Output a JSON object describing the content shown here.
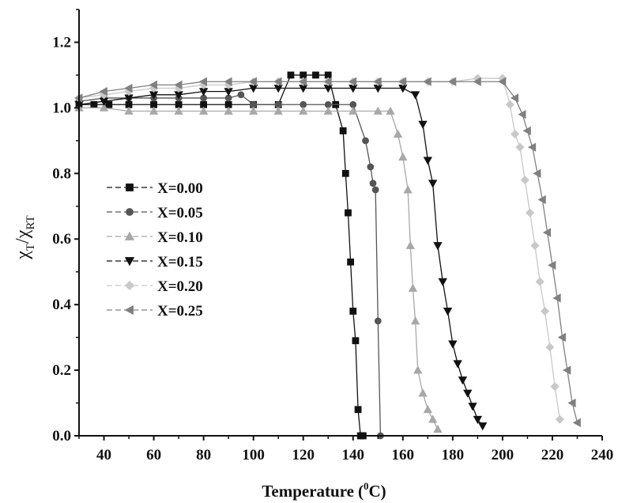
{
  "chart_data": {
    "type": "scatter",
    "title": "",
    "xlabel": "Temperature",
    "xlabel_unit_base": "(",
    "xlabel_unit_sup": "0",
    "xlabel_unit_end": "C)",
    "ylabel_main": "χ",
    "ylabel_sub1": "T",
    "ylabel_slash": "/",
    "ylabel_main2": "χ",
    "ylabel_sub2": "RT",
    "xlim": [
      30,
      240
    ],
    "ylim": [
      0.0,
      1.3
    ],
    "xticks": [
      "40",
      "60",
      "80",
      "100",
      "120",
      "140",
      "160",
      "180",
      "200",
      "220",
      "240"
    ],
    "yticks": [
      "0.0",
      "0.2",
      "0.4",
      "0.6",
      "0.8",
      "1.0",
      "1.2"
    ],
    "grid": false,
    "legend_position": "center-left",
    "series": [
      {
        "name": "X=0.00",
        "marker": "square",
        "color": "#111111",
        "x": [
          30,
          36,
          42,
          50,
          60,
          70,
          80,
          90,
          100,
          110,
          115,
          120,
          125,
          130,
          133,
          136,
          137,
          138,
          139,
          140,
          141,
          142,
          143,
          144
        ],
        "y": [
          1.01,
          1.01,
          1.01,
          1.01,
          1.01,
          1.01,
          1.01,
          1.01,
          1.01,
          1.01,
          1.1,
          1.1,
          1.1,
          1.1,
          1.01,
          0.93,
          0.8,
          0.68,
          0.53,
          0.38,
          0.29,
          0.08,
          0.0,
          0.0
        ]
      },
      {
        "name": "X=0.05",
        "marker": "circle",
        "color": "#555555",
        "x": [
          30,
          40,
          50,
          60,
          70,
          80,
          90,
          95,
          100,
          110,
          120,
          130,
          140,
          145,
          147,
          148,
          149,
          150,
          151
        ],
        "y": [
          1.02,
          1.03,
          1.03,
          1.03,
          1.03,
          1.03,
          1.03,
          1.04,
          1.01,
          1.01,
          1.01,
          1.01,
          1.01,
          0.9,
          0.82,
          0.77,
          0.75,
          0.35,
          0.0
        ]
      },
      {
        "name": "X=0.10",
        "marker": "triangle-up",
        "color": "#a8a8a8",
        "x": [
          30,
          40,
          50,
          60,
          70,
          80,
          90,
          100,
          110,
          120,
          130,
          140,
          150,
          155,
          158,
          160,
          162,
          163,
          164,
          165,
          166,
          168,
          170,
          172,
          174
        ],
        "y": [
          1.0,
          1.0,
          0.99,
          0.99,
          0.99,
          0.99,
          0.99,
          0.99,
          0.99,
          0.99,
          0.99,
          0.99,
          0.99,
          0.99,
          0.92,
          0.85,
          0.75,
          0.58,
          0.45,
          0.35,
          0.2,
          0.13,
          0.08,
          0.05,
          0.02
        ]
      },
      {
        "name": "X=0.15",
        "marker": "triangle-down",
        "color": "#111111",
        "x": [
          30,
          40,
          50,
          60,
          70,
          80,
          90,
          100,
          110,
          120,
          130,
          140,
          150,
          160,
          165,
          168,
          170,
          172,
          174,
          176,
          178,
          180,
          182,
          184,
          186,
          188,
          190,
          192
        ],
        "y": [
          1.01,
          1.02,
          1.03,
          1.04,
          1.04,
          1.05,
          1.05,
          1.06,
          1.06,
          1.06,
          1.06,
          1.06,
          1.06,
          1.06,
          1.04,
          0.95,
          0.84,
          0.77,
          0.58,
          0.47,
          0.38,
          0.28,
          0.22,
          0.17,
          0.13,
          0.09,
          0.05,
          0.03
        ]
      },
      {
        "name": "X=0.20",
        "marker": "diamond",
        "color": "#c8c8c8",
        "x": [
          30,
          40,
          50,
          60,
          70,
          80,
          90,
          100,
          110,
          120,
          130,
          140,
          150,
          160,
          170,
          180,
          190,
          200,
          203,
          205,
          207,
          209,
          211,
          213,
          215,
          217,
          219,
          221,
          223
        ],
        "y": [
          1.03,
          1.04,
          1.05,
          1.06,
          1.06,
          1.07,
          1.07,
          1.08,
          1.08,
          1.08,
          1.08,
          1.08,
          1.08,
          1.08,
          1.08,
          1.08,
          1.09,
          1.09,
          1.01,
          0.92,
          0.88,
          0.78,
          0.68,
          0.58,
          0.47,
          0.38,
          0.27,
          0.15,
          0.05
        ]
      },
      {
        "name": "X=0.25",
        "marker": "triangle-left",
        "color": "#808080",
        "x": [
          30,
          40,
          50,
          60,
          70,
          80,
          90,
          100,
          110,
          120,
          130,
          140,
          150,
          160,
          170,
          180,
          190,
          200,
          205,
          208,
          210,
          212,
          214,
          216,
          218,
          220,
          222,
          224,
          226,
          228,
          230
        ],
        "y": [
          1.03,
          1.05,
          1.06,
          1.07,
          1.07,
          1.08,
          1.08,
          1.08,
          1.08,
          1.08,
          1.08,
          1.08,
          1.08,
          1.08,
          1.08,
          1.08,
          1.08,
          1.08,
          1.03,
          0.98,
          0.93,
          0.88,
          0.8,
          0.72,
          0.62,
          0.52,
          0.42,
          0.3,
          0.2,
          0.1,
          0.04
        ]
      }
    ]
  }
}
